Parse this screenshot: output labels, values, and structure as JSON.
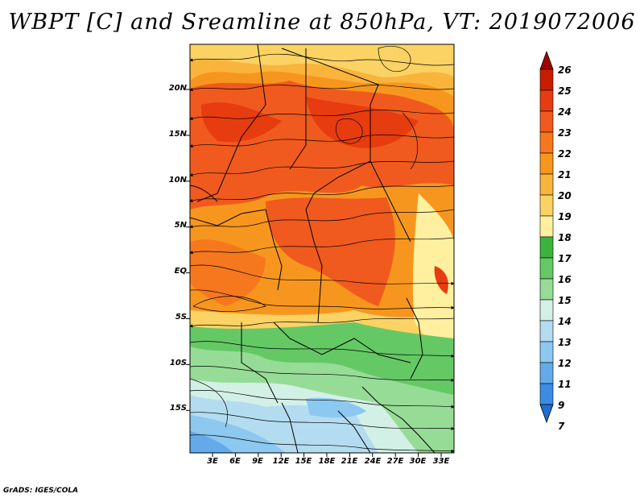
{
  "title": "WBPT [C] and Sreamline at 850hPa, VT: 2019072006",
  "lat_labels": [
    "20N",
    "15N",
    "10N",
    "5N",
    "EQ",
    "5S",
    "10S",
    "15S"
  ],
  "lon_labels": [
    "3E",
    "6E",
    "9E",
    "12E",
    "15E",
    "18E",
    "21E",
    "24E",
    "27E",
    "30E",
    "33E"
  ],
  "colorbar": {
    "labels": [
      "26",
      "25",
      "24",
      "23",
      "22",
      "21",
      "20",
      "19",
      "18",
      "17",
      "16",
      "15",
      "14",
      "13",
      "12",
      "11",
      "9",
      "7"
    ],
    "colors": [
      "#a50000",
      "#c81e00",
      "#e63c0f",
      "#f05a1e",
      "#f5781e",
      "#f7961e",
      "#f9b43c",
      "#fbd264",
      "#fff0a0",
      "#3cb43c",
      "#64c864",
      "#96dc96",
      "#d2f0e6",
      "#b4dcf0",
      "#8cc8f0",
      "#64aaeb",
      "#3c8ce6",
      "#1e6ed2"
    ]
  },
  "credit": "GrADS: IGES/COLA"
}
